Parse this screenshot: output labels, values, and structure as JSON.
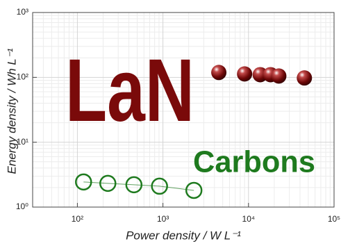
{
  "chart_data": {
    "type": "scatter",
    "xlabel": "Power density / W L⁻¹",
    "ylabel": "Energy density / Wh L⁻¹",
    "xscale": "log",
    "yscale": "log",
    "xlim": [
      30,
      100000
    ],
    "ylim": [
      1,
      1000
    ],
    "xticks": [
      {
        "value": 100,
        "label": "10²"
      },
      {
        "value": 1000,
        "label": "10³"
      },
      {
        "value": 10000,
        "label": "10⁴"
      },
      {
        "value": 100000,
        "label": "10⁵"
      }
    ],
    "yticks": [
      {
        "value": 1,
        "label": "10⁰"
      },
      {
        "value": 10,
        "label": "10¹"
      },
      {
        "value": 100,
        "label": "10²"
      },
      {
        "value": 1000,
        "label": "10³"
      }
    ],
    "grid": true,
    "series": [
      {
        "name": "LaN",
        "color": "#7a0a0a",
        "marker": "sphere",
        "x": [
          4500,
          9000,
          13700,
          18100,
          22600,
          45000
        ],
        "values": [
          119,
          113,
          110,
          110,
          105,
          98
        ]
      },
      {
        "name": "Carbons",
        "color": "#1e7a1e",
        "marker": "hollow-circle",
        "line": true,
        "x": [
          118,
          227,
          458,
          912,
          2300
        ],
        "values": [
          2.44,
          2.32,
          2.21,
          2.1,
          1.81
        ]
      }
    ]
  }
}
